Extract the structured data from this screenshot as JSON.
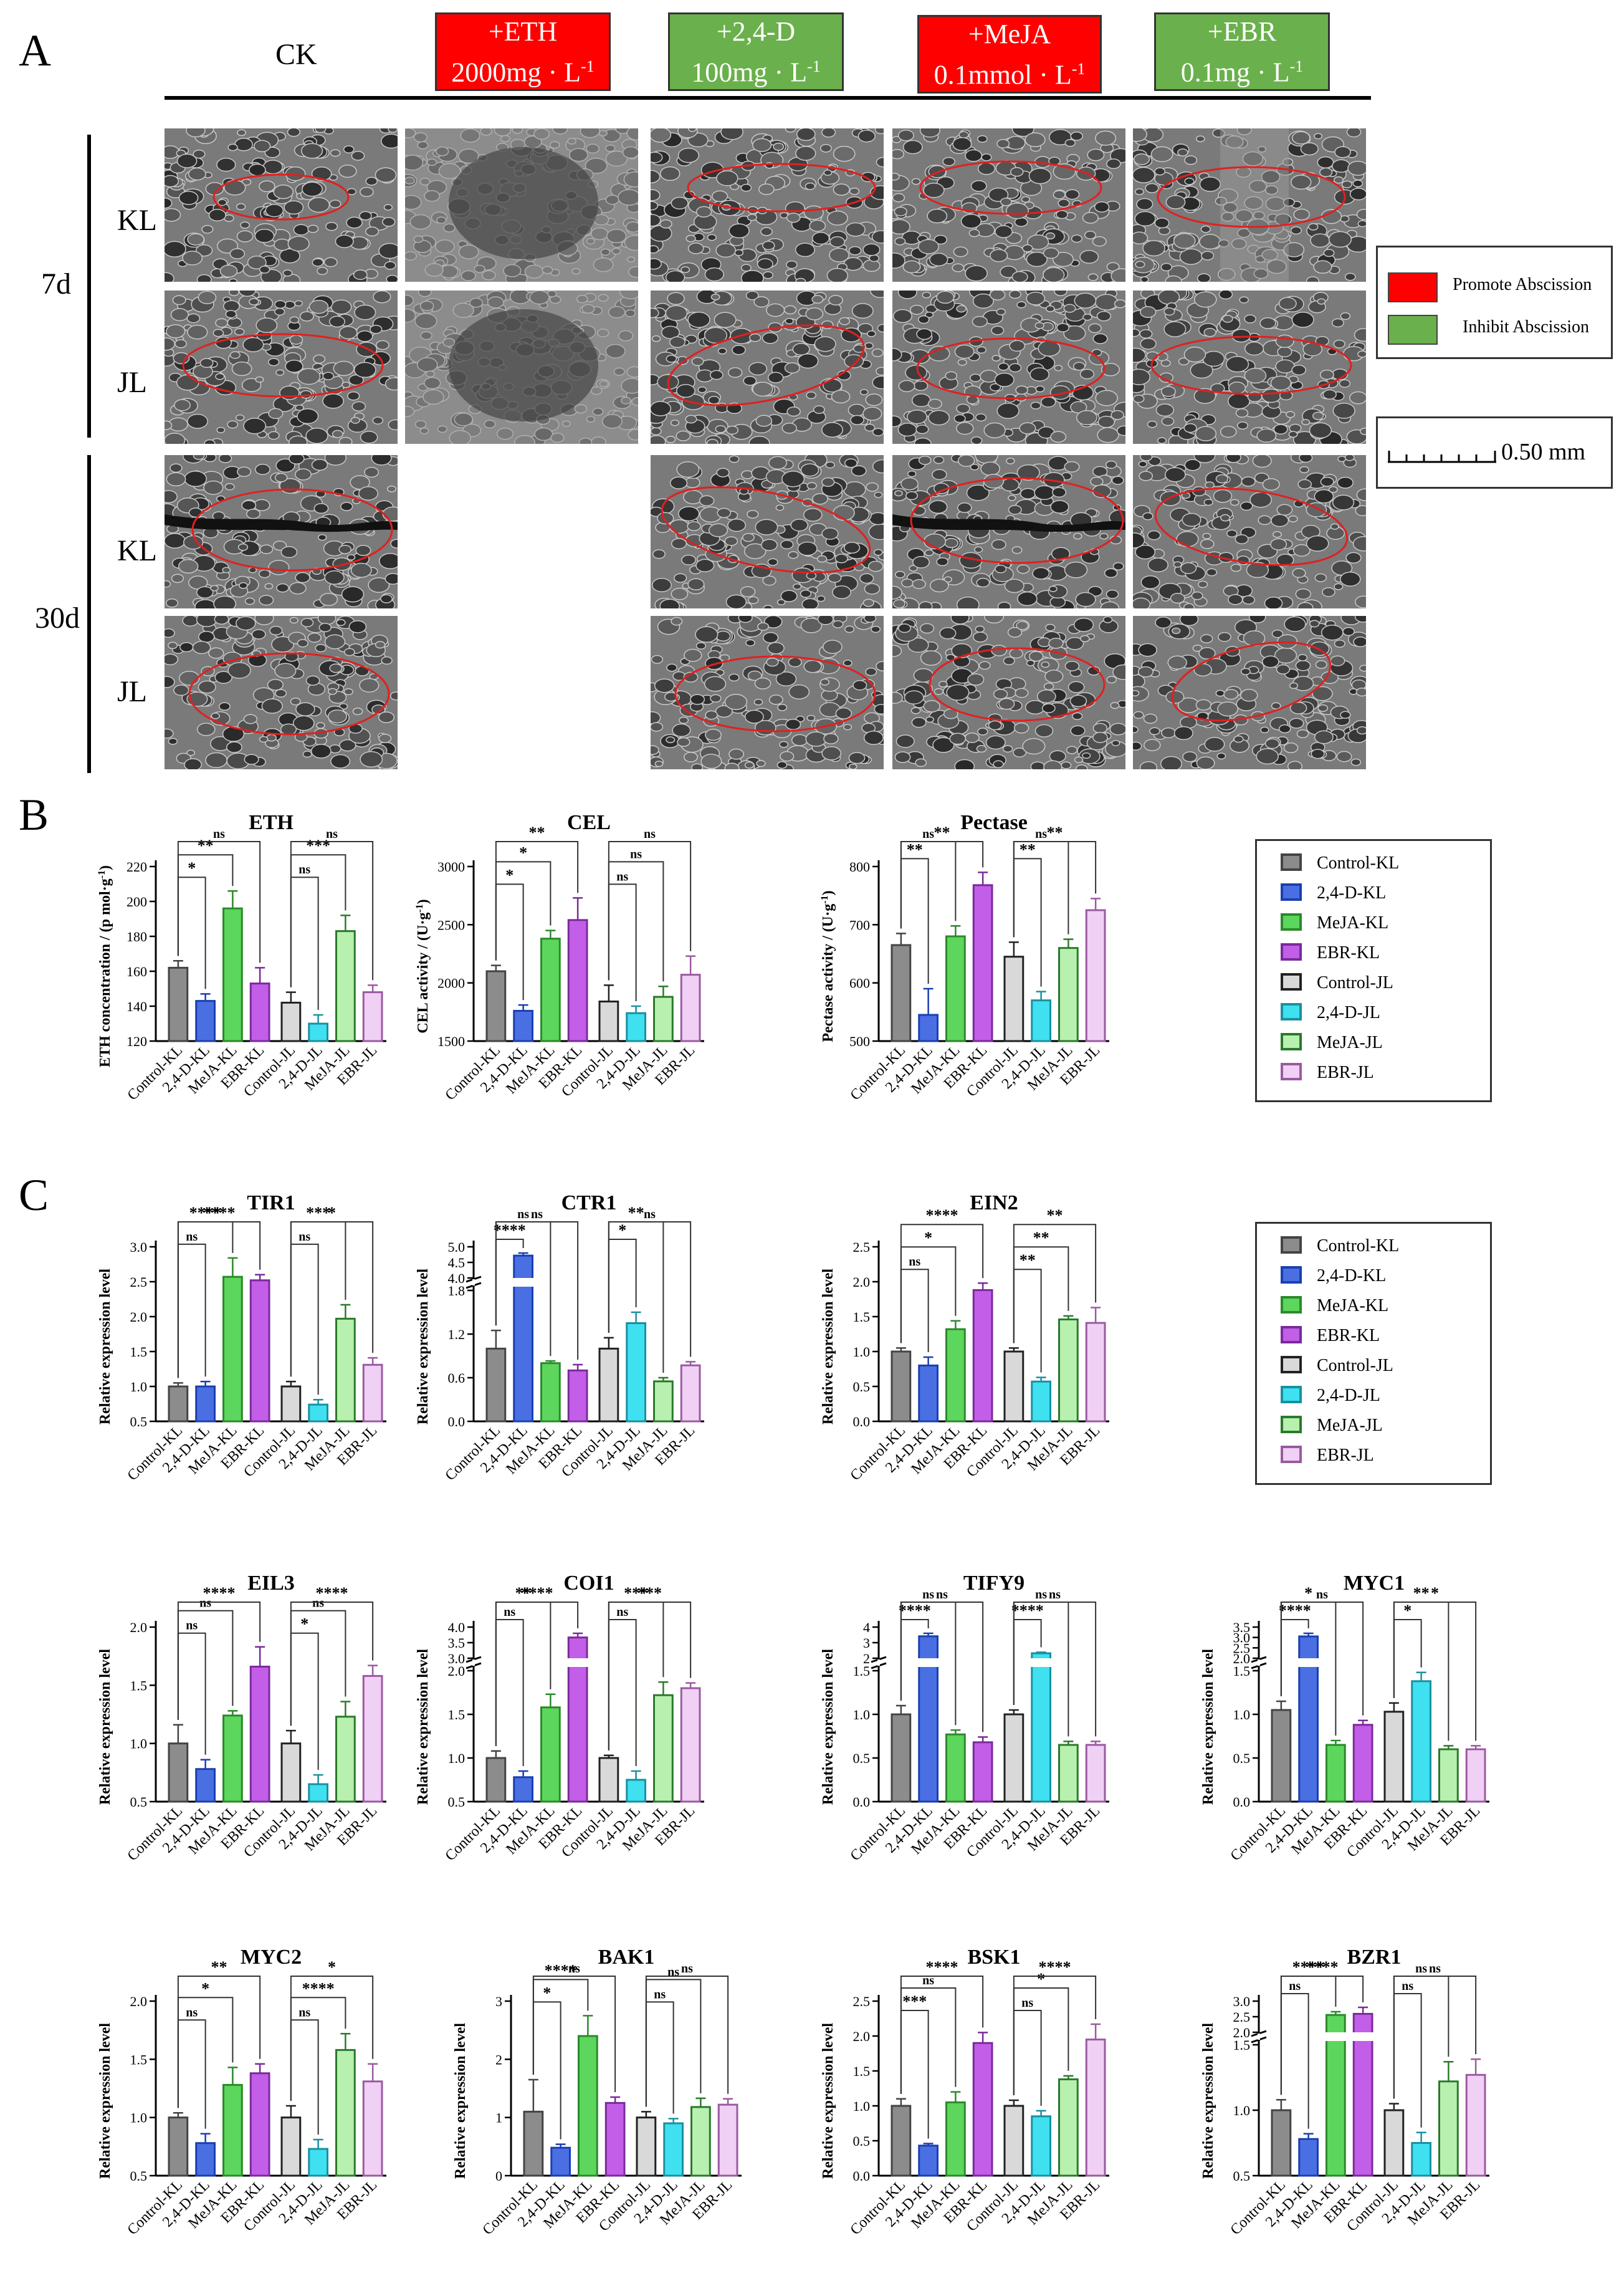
{
  "panelA": {
    "letter": "A",
    "ck_label": "CK",
    "treatments": [
      {
        "line1": "+ETH",
        "line2": "2000mg · L",
        "sup": "-1",
        "color": "#ff0000"
      },
      {
        "line1": "+2,4-D",
        "line2": "100mg · L",
        "sup": "-1",
        "color": "#6ab04c"
      },
      {
        "line1": "+MeJA",
        "line2": "0.1mmol · L",
        "sup": "-1",
        "color": "#ff0000"
      },
      {
        "line1": "+EBR",
        "line2": "0.1mg · L",
        "sup": "-1",
        "color": "#6ab04c"
      }
    ],
    "time_labels": [
      "7d",
      "30d"
    ],
    "row_labels": [
      "KL",
      "JL",
      "KL",
      "JL"
    ],
    "legend": {
      "promote": "Promote Abscission",
      "inhibit": "Inhibit Abscission",
      "promote_color": "#ff0000",
      "inhibit_color": "#6ab04c"
    },
    "scale_bar": "0.50 mm"
  },
  "panelB": {
    "letter": "B"
  },
  "panelC": {
    "letter": "C"
  },
  "legend_entries": [
    "Control-KL",
    "2,4-D-KL",
    "MeJA-KL",
    "EBR-KL",
    "Control-JL",
    "2,4-D-JL",
    "MeJA-JL",
    "EBR-JL"
  ],
  "series_colors": [
    "#8c8c8c",
    "#4a6fe3",
    "#5cd65c",
    "#c25ee8",
    "#d9d9d9",
    "#3fe0f0",
    "#b8f0b0",
    "#f0d0f5"
  ],
  "series_edges": [
    "#444444",
    "#1a3fb0",
    "#2a8a2a",
    "#7a2a9a",
    "#222222",
    "#1a90a0",
    "#2a7a2a",
    "#9a5aa0"
  ],
  "chart_data": [
    {
      "type": "bar",
      "title": "ETH",
      "ylabel": "ETH concentration / (p mol·g",
      "ylabel_sup": "-1",
      "ylabel_end": ")",
      "ylim": [
        120,
        220
      ],
      "ticks": [
        120,
        140,
        160,
        180,
        200,
        220
      ],
      "values": [
        162,
        143,
        196,
        153,
        142,
        130,
        183,
        148
      ],
      "errors": [
        4,
        4,
        10,
        9,
        6,
        5,
        9,
        4
      ],
      "sig": [
        {
          "a": 0,
          "b": 1,
          "t": "*",
          "lvl": 0
        },
        {
          "a": 0,
          "b": 2,
          "t": "**",
          "lvl": 1
        },
        {
          "a": 0,
          "b": 3,
          "t": "ns",
          "lvl": 2
        },
        {
          "a": 4,
          "b": 5,
          "t": "ns",
          "lvl": 0
        },
        {
          "a": 4,
          "b": 6,
          "t": "***",
          "lvl": 1
        },
        {
          "a": 4,
          "b": 7,
          "t": "ns",
          "lvl": 2
        }
      ]
    },
    {
      "type": "bar",
      "title": "CEL",
      "ylabel": "CEL activity / (U·g",
      "ylabel_sup": "-1",
      "ylabel_end": ")",
      "ylim": [
        1500,
        3000
      ],
      "ticks": [
        1500,
        2000,
        2500,
        3000
      ],
      "values": [
        2100,
        1760,
        2380,
        2540,
        1840,
        1740,
        1880,
        2070
      ],
      "errors": [
        50,
        50,
        70,
        190,
        140,
        60,
        90,
        160
      ],
      "sig": [
        {
          "a": 0,
          "b": 1,
          "t": "*",
          "lvl": 0
        },
        {
          "a": 0,
          "b": 2,
          "t": "*",
          "lvl": 1
        },
        {
          "a": 0,
          "b": 3,
          "t": "**",
          "lvl": 2
        },
        {
          "a": 4,
          "b": 5,
          "t": "ns",
          "lvl": 0
        },
        {
          "a": 4,
          "b": 6,
          "t": "ns",
          "lvl": 1
        },
        {
          "a": 4,
          "b": 7,
          "t": "ns",
          "lvl": 2
        }
      ]
    },
    {
      "type": "bar",
      "title": "Pectase",
      "ylabel": "Pectase activity / (U·g",
      "ylabel_sup": "-1",
      "ylabel_end": ")",
      "ylim": [
        500,
        800
      ],
      "ticks": [
        500,
        600,
        700,
        800
      ],
      "values": [
        665,
        545,
        680,
        768,
        645,
        570,
        660,
        725
      ],
      "errors": [
        20,
        45,
        18,
        22,
        25,
        15,
        15,
        20
      ],
      "sig": [
        {
          "a": 0,
          "b": 1,
          "t": "**",
          "lvl": 0
        },
        {
          "a": 0,
          "b": 2,
          "t": "ns",
          "lvl": 1
        },
        {
          "a": 0,
          "b": 3,
          "t": "**",
          "lvl": 2
        },
        {
          "a": 4,
          "b": 5,
          "t": "**",
          "lvl": 0
        },
        {
          "a": 4,
          "b": 6,
          "t": "ns",
          "lvl": 1
        },
        {
          "a": 4,
          "b": 7,
          "t": "**",
          "lvl": 2
        }
      ]
    },
    {
      "type": "bar",
      "title": "TIR1",
      "ylabel": "Relative expression level",
      "ylim": [
        0.5,
        3.0
      ],
      "ticks": [
        0.5,
        1.0,
        1.5,
        2.0,
        2.5,
        3.0
      ],
      "values": [
        1.0,
        1.0,
        2.57,
        2.52,
        1.0,
        0.74,
        1.97,
        1.31
      ],
      "errors": [
        0.05,
        0.07,
        0.27,
        0.08,
        0.07,
        0.07,
        0.2,
        0.1
      ],
      "sig": [
        {
          "a": 0,
          "b": 1,
          "t": "ns",
          "lvl": 0
        },
        {
          "a": 0,
          "b": 2,
          "t": "****",
          "lvl": 1
        },
        {
          "a": 0,
          "b": 3,
          "t": "****",
          "lvl": 2
        },
        {
          "a": 4,
          "b": 5,
          "t": "ns",
          "lvl": 0
        },
        {
          "a": 4,
          "b": 6,
          "t": "***",
          "lvl": 1
        },
        {
          "a": 4,
          "b": 7,
          "t": "*",
          "lvl": 2
        }
      ]
    },
    {
      "type": "bar",
      "title": "CTR1",
      "ylabel": "Relative expression level",
      "ylim": [
        0,
        1.8
      ],
      "break": true,
      "ticks": [
        0.0,
        0.6,
        1.2,
        1.8
      ],
      "upper_ticks": [
        "4.0",
        "4.5",
        "5.0"
      ],
      "values": [
        1.0,
        4.4,
        0.8,
        0.7,
        1.0,
        1.35,
        0.55,
        0.77
      ],
      "errors": [
        0.25,
        0.3,
        0.03,
        0.08,
        0.15,
        0.15,
        0.05,
        0.05
      ],
      "sig": [
        {
          "a": 0,
          "b": 1,
          "t": "****",
          "lvl": 0
        },
        {
          "a": 0,
          "b": 2,
          "t": "ns",
          "lvl": 1
        },
        {
          "a": 0,
          "b": 3,
          "t": "ns",
          "lvl": 2
        },
        {
          "a": 4,
          "b": 5,
          "t": "*",
          "lvl": 0
        },
        {
          "a": 4,
          "b": 6,
          "t": "**",
          "lvl": 1
        },
        {
          "a": 4,
          "b": 7,
          "t": "ns",
          "lvl": 2
        }
      ]
    },
    {
      "type": "bar",
      "title": "EIN2",
      "ylabel": "Relative expression level",
      "ylim": [
        0,
        2.5
      ],
      "ticks": [
        0.0,
        0.5,
        1.0,
        1.5,
        2.0,
        2.5
      ],
      "values": [
        1.0,
        0.8,
        1.32,
        1.88,
        1.0,
        0.57,
        1.46,
        1.41
      ],
      "errors": [
        0.05,
        0.12,
        0.12,
        0.1,
        0.05,
        0.06,
        0.05,
        0.22
      ],
      "sig": [
        {
          "a": 0,
          "b": 1,
          "t": "ns",
          "lvl": 0
        },
        {
          "a": 0,
          "b": 2,
          "t": "*",
          "lvl": 1
        },
        {
          "a": 0,
          "b": 3,
          "t": "****",
          "lvl": 2
        },
        {
          "a": 4,
          "b": 5,
          "t": "**",
          "lvl": 0
        },
        {
          "a": 4,
          "b": 6,
          "t": "**",
          "lvl": 1
        },
        {
          "a": 4,
          "b": 7,
          "t": "**",
          "lvl": 2
        }
      ]
    },
    {
      "type": "bar",
      "title": "EIL3",
      "ylabel": "Relative expression level",
      "ylim": [
        0.5,
        2.0
      ],
      "ticks": [
        0.5,
        1.0,
        1.5,
        2.0
      ],
      "values": [
        1.0,
        0.78,
        1.24,
        1.66,
        1.0,
        0.65,
        1.23,
        1.58
      ],
      "errors": [
        0.16,
        0.08,
        0.04,
        0.17,
        0.11,
        0.08,
        0.13,
        0.09
      ],
      "sig": [
        {
          "a": 0,
          "b": 1,
          "t": "ns",
          "lvl": 0
        },
        {
          "a": 0,
          "b": 2,
          "t": "ns",
          "lvl": 1
        },
        {
          "a": 0,
          "b": 3,
          "t": "****",
          "lvl": 2
        },
        {
          "a": 4,
          "b": 5,
          "t": "*",
          "lvl": 0
        },
        {
          "a": 4,
          "b": 6,
          "t": "ns",
          "lvl": 1
        },
        {
          "a": 4,
          "b": 7,
          "t": "****",
          "lvl": 2
        }
      ]
    },
    {
      "type": "bar",
      "title": "COI1",
      "ylabel": "Relative expression level",
      "ylim": [
        0.5,
        2.0
      ],
      "break": true,
      "ticks": [
        0.5,
        1.0,
        1.5,
        2.0
      ],
      "upper_ticks": [
        "3.0",
        "3.5",
        "4.0"
      ],
      "values": [
        1.0,
        0.78,
        1.58,
        3.5,
        1.0,
        0.75,
        1.72,
        1.8
      ],
      "errors": [
        0.08,
        0.07,
        0.15,
        0.3,
        0.03,
        0.1,
        0.15,
        0.06
      ],
      "sig": [
        {
          "a": 0,
          "b": 1,
          "t": "ns",
          "lvl": 0
        },
        {
          "a": 0,
          "b": 2,
          "t": "**",
          "lvl": 1
        },
        {
          "a": 0,
          "b": 3,
          "t": "****",
          "lvl": 2
        },
        {
          "a": 4,
          "b": 5,
          "t": "ns",
          "lvl": 0
        },
        {
          "a": 4,
          "b": 6,
          "t": "***",
          "lvl": 1
        },
        {
          "a": 4,
          "b": 7,
          "t": "***",
          "lvl": 2
        }
      ]
    },
    {
      "type": "bar",
      "title": "TIFY9",
      "ylabel": "Relative expression level",
      "ylim": [
        0,
        1.5
      ],
      "break": true,
      "ticks": [
        0.0,
        0.5,
        1.0,
        1.5
      ],
      "upper_ticks": [
        "2",
        "3",
        "4"
      ],
      "values": [
        1.0,
        3.7,
        0.77,
        0.68,
        1.0,
        2.0,
        0.65,
        0.65
      ],
      "errors": [
        0.1,
        0.3,
        0.05,
        0.06,
        0.05,
        0.1,
        0.04,
        0.04
      ],
      "sig": [
        {
          "a": 0,
          "b": 1,
          "t": "****",
          "lvl": 0
        },
        {
          "a": 0,
          "b": 2,
          "t": "ns",
          "lvl": 1
        },
        {
          "a": 0,
          "b": 3,
          "t": "ns",
          "lvl": 2
        },
        {
          "a": 4,
          "b": 5,
          "t": "****",
          "lvl": 0
        },
        {
          "a": 4,
          "b": 6,
          "t": "ns",
          "lvl": 1
        },
        {
          "a": 4,
          "b": 7,
          "t": "ns",
          "lvl": 2
        }
      ]
    },
    {
      "type": "bar",
      "title": "MYC1",
      "ylabel": "Relative expression level",
      "ylim": [
        0,
        1.5
      ],
      "break": true,
      "ticks": [
        0.0,
        0.5,
        1.0,
        1.5
      ],
      "upper_ticks": [
        "2.0",
        "2.5",
        "3.0",
        "3.5"
      ],
      "values": [
        1.05,
        2.9,
        0.65,
        0.88,
        1.03,
        1.38,
        0.6,
        0.6
      ],
      "errors": [
        0.1,
        0.2,
        0.05,
        0.05,
        0.1,
        0.1,
        0.04,
        0.04
      ],
      "sig": [
        {
          "a": 0,
          "b": 1,
          "t": "****",
          "lvl": 0
        },
        {
          "a": 0,
          "b": 2,
          "t": "*",
          "lvl": 1
        },
        {
          "a": 0,
          "b": 3,
          "t": "ns",
          "lvl": 2
        },
        {
          "a": 4,
          "b": 5,
          "t": "*",
          "lvl": 0
        },
        {
          "a": 4,
          "b": 6,
          "t": "**",
          "lvl": 1
        },
        {
          "a": 4,
          "b": 7,
          "t": "*",
          "lvl": 2
        }
      ]
    },
    {
      "type": "bar",
      "title": "MYC2",
      "ylabel": "Relative expression level",
      "ylim": [
        0.5,
        2.0
      ],
      "ticks": [
        0.5,
        1.0,
        1.5,
        2.0
      ],
      "values": [
        1.0,
        0.78,
        1.28,
        1.38,
        1.0,
        0.73,
        1.58,
        1.31
      ],
      "errors": [
        0.04,
        0.08,
        0.15,
        0.08,
        0.1,
        0.08,
        0.14,
        0.15
      ],
      "sig": [
        {
          "a": 0,
          "b": 1,
          "t": "ns",
          "lvl": 0
        },
        {
          "a": 0,
          "b": 2,
          "t": "*",
          "lvl": 1
        },
        {
          "a": 0,
          "b": 3,
          "t": "**",
          "lvl": 2
        },
        {
          "a": 4,
          "b": 5,
          "t": "ns",
          "lvl": 0
        },
        {
          "a": 4,
          "b": 6,
          "t": "****",
          "lvl": 1
        },
        {
          "a": 4,
          "b": 7,
          "t": "*",
          "lvl": 2
        }
      ]
    },
    {
      "type": "bar",
      "title": "BAK1",
      "ylabel": "Relative expression level",
      "ylim": [
        0,
        3
      ],
      "ticks": [
        0,
        1,
        2,
        3
      ],
      "values": [
        1.1,
        0.48,
        2.4,
        1.25,
        1.0,
        0.9,
        1.18,
        1.22
      ],
      "errors": [
        0.55,
        0.06,
        0.35,
        0.1,
        0.1,
        0.08,
        0.15,
        0.1
      ],
      "sig": [
        {
          "a": 0,
          "b": 1,
          "t": "*",
          "lvl": 0
        },
        {
          "a": 0,
          "b": 2,
          "t": "****",
          "lvl": 1
        },
        {
          "a": 0,
          "b": 3,
          "t": "ns",
          "lvl": 2
        },
        {
          "a": 4,
          "b": 5,
          "t": "ns",
          "lvl": 0
        },
        {
          "a": 4,
          "b": 6,
          "t": "ns",
          "lvl": 1
        },
        {
          "a": 4,
          "b": 7,
          "t": "ns",
          "lvl": 2
        }
      ]
    },
    {
      "type": "bar",
      "title": "BSK1",
      "ylabel": "Relative expression level",
      "ylim": [
        0,
        2.5
      ],
      "ticks": [
        0.0,
        0.5,
        1.0,
        1.5,
        2.0,
        2.5
      ],
      "values": [
        1.0,
        0.43,
        1.05,
        1.9,
        1.0,
        0.85,
        1.38,
        1.95
      ],
      "errors": [
        0.1,
        0.03,
        0.15,
        0.15,
        0.08,
        0.08,
        0.05,
        0.22
      ],
      "sig": [
        {
          "a": 0,
          "b": 1,
          "t": "***",
          "lvl": 0
        },
        {
          "a": 0,
          "b": 2,
          "t": "ns",
          "lvl": 1
        },
        {
          "a": 0,
          "b": 3,
          "t": "****",
          "lvl": 2
        },
        {
          "a": 4,
          "b": 5,
          "t": "ns",
          "lvl": 0
        },
        {
          "a": 4,
          "b": 6,
          "t": "*",
          "lvl": 1
        },
        {
          "a": 4,
          "b": 7,
          "t": "****",
          "lvl": 2
        }
      ]
    },
    {
      "type": "bar",
      "title": "BZR1",
      "ylabel": "Relative expression level",
      "ylim": [
        0.5,
        1.5
      ],
      "break": true,
      "ticks": [
        0.5,
        1.0,
        1.5
      ],
      "upper_ticks": [
        "2.0",
        "2.5",
        "3.0"
      ],
      "values": [
        1.0,
        0.78,
        2.3,
        2.35,
        1.0,
        0.75,
        1.22,
        1.27
      ],
      "errors": [
        0.08,
        0.04,
        0.15,
        0.3,
        0.05,
        0.08,
        0.15,
        0.12
      ],
      "sig": [
        {
          "a": 0,
          "b": 1,
          "t": "ns",
          "lvl": 0
        },
        {
          "a": 0,
          "b": 2,
          "t": "****",
          "lvl": 1
        },
        {
          "a": 0,
          "b": 3,
          "t": "****",
          "lvl": 2
        },
        {
          "a": 4,
          "b": 5,
          "t": "ns",
          "lvl": 0
        },
        {
          "a": 4,
          "b": 6,
          "t": "ns",
          "lvl": 1
        },
        {
          "a": 4,
          "b": 7,
          "t": "ns",
          "lvl": 2
        }
      ]
    }
  ]
}
